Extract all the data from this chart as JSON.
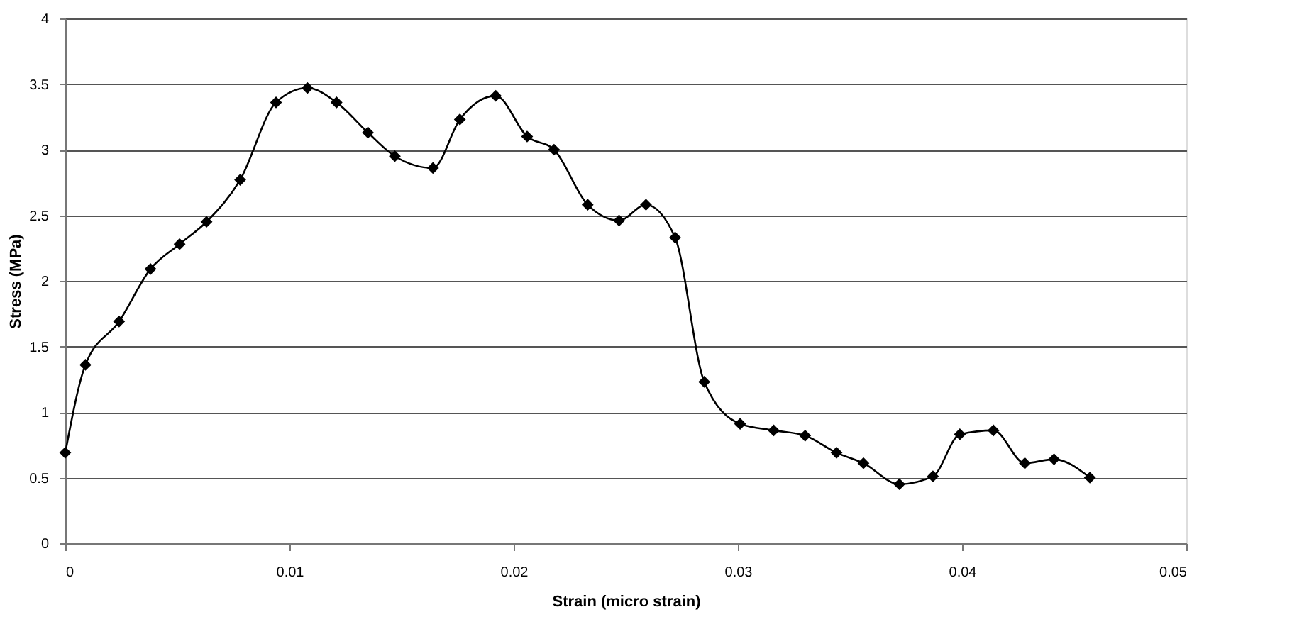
{
  "chart_data": {
    "type": "line",
    "xlabel": "Strain (micro strain)",
    "ylabel": "Stress (MPa)",
    "x": [
      0,
      0.0009,
      0.0024,
      0.0038,
      0.0051,
      0.0063,
      0.0078,
      0.0094,
      0.0108,
      0.0121,
      0.0135,
      0.0147,
      0.0164,
      0.0176,
      0.0192,
      0.0206,
      0.0218,
      0.0233,
      0.0247,
      0.0259,
      0.0272,
      0.0285,
      0.0301,
      0.0316,
      0.033,
      0.0344,
      0.0356,
      0.0372,
      0.0387,
      0.0399,
      0.0414,
      0.0428,
      0.0441,
      0.0457
    ],
    "series": [
      {
        "color": "#000000",
        "values": [
          0.69,
          1.36,
          1.69,
          2.09,
          2.28,
          2.45,
          2.77,
          3.36,
          3.47,
          3.36,
          3.13,
          2.95,
          2.86,
          3.23,
          3.41,
          3.1,
          3.0,
          2.58,
          2.46,
          2.58,
          2.33,
          1.23,
          0.91,
          0.86,
          0.82,
          0.69,
          0.61,
          0.45,
          0.51,
          0.83,
          0.86,
          0.61,
          0.64,
          0.5
        ]
      }
    ],
    "xlim": [
      0,
      0.05
    ],
    "xticks": [
      0,
      0.01,
      0.02,
      0.03,
      0.04,
      0.05
    ],
    "ylim": [
      0,
      4
    ],
    "yticks": [
      0,
      0.5,
      1,
      1.5,
      2,
      2.5,
      3,
      3.5,
      4
    ],
    "grid": "y",
    "marker": "diamond",
    "line_style": "solid",
    "legend": false
  }
}
